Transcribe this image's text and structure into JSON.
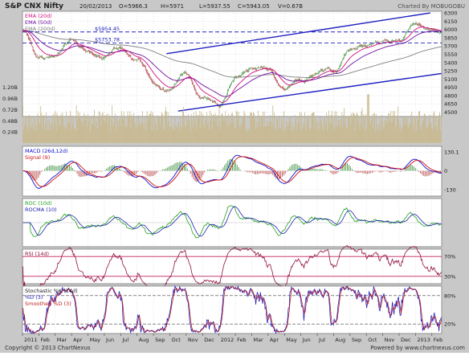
{
  "header": {
    "symbol": "S&P CNX Nifty",
    "date": "20/02/2013",
    "open": "O=5966.3",
    "high": "H=5971",
    "low": "L=5937.55",
    "close": "C=5943.05",
    "volume": "V=0.67B",
    "credit": "Charted By MOBUGOBU"
  },
  "footer": {
    "copyright": "Copyright © 2013 ChartNexus",
    "powered": "Powered by www.chartnexus.com"
  },
  "colors": {
    "background": "#c8c8c8",
    "panel": "#ffffff",
    "grid": "#c0c0c0",
    "ema20": "#d01080",
    "ema50": "#7010a0",
    "ema200": "#808080",
    "channel": "#2020c0",
    "level": "#2020c0",
    "candle_up": "#2a8a2a",
    "candle_down": "#a02020",
    "volume": "#c8b88a",
    "macd": "#1010d0",
    "signal": "#d01010",
    "hist_up": "#5aa05a",
    "hist_down": "#c06060",
    "roc": "#20a020",
    "rocma": "#2020b0",
    "rsi": "#901040",
    "rsi_band": "#c02060",
    "stoch_k": "#2020c0",
    "stoch_d": "#c02020"
  },
  "chart_data": [
    {
      "type": "candlestick",
      "panel": "price",
      "legend": [
        "EMA (20d)",
        "EMA (50d)",
        "EMA (200d)"
      ],
      "y_ticks": [
        4500,
        4650,
        4800,
        4950,
        5100,
        5250,
        5400,
        5550,
        5700,
        5850,
        6000,
        6150,
        6300
      ],
      "ylim": [
        4420,
        6330
      ],
      "level_lines": [
        {
          "label": "$5954.45",
          "value": 5954.45
        },
        {
          "label": "$5753.78",
          "value": 5753.78
        }
      ],
      "x_labels": [
        "2011",
        "Feb",
        "Mar",
        "Apr",
        "May",
        "Jun",
        "Jul",
        "Aug",
        "Sep",
        "Oct",
        "Nov",
        "Dec",
        "2012",
        "Feb",
        "Mar",
        "Apr",
        "May",
        "Jun",
        "Jul",
        "Aug",
        "Sep",
        "Oct",
        "Nov",
        "Dec",
        "2013",
        "Feb"
      ],
      "close_path_months": [
        0,
        1,
        2,
        3,
        4,
        5,
        6,
        7,
        8,
        9,
        10,
        11,
        12,
        13,
        14,
        15,
        16,
        17,
        18,
        19,
        20,
        21,
        22,
        23,
        24,
        25,
        25.6
      ],
      "close_path_values": [
        6000,
        5500,
        5550,
        5850,
        5550,
        5500,
        5650,
        5450,
        5000,
        4900,
        5200,
        4700,
        4650,
        5100,
        5300,
        5250,
        4900,
        5050,
        5200,
        5250,
        5600,
        5700,
        5750,
        5800,
        6050,
        6000,
        5943
      ]
    },
    {
      "type": "bar",
      "panel": "volume",
      "y_ticks": [
        "1.20B",
        "0.96B",
        "0.72B",
        "0.48B",
        "0.24B"
      ],
      "y_tick_values": [
        1.2,
        0.96,
        0.72,
        0.48,
        0.24
      ],
      "ylim": [
        0,
        1.35
      ],
      "note": "daily volume bars, typical 0.3B–0.8B with a spike near Oct 2012"
    },
    {
      "type": "line",
      "panel": "macd",
      "legend": [
        "MACD (26d,12d)",
        "Signal (9)"
      ],
      "y_ticks": [
        130.1,
        0,
        -130
      ],
      "ylim": [
        -175,
        170
      ]
    },
    {
      "type": "line",
      "panel": "roc",
      "legend": [
        "ROC (10d)",
        "ROCMA (10)"
      ],
      "y_ticks": [],
      "ylim": [
        -10,
        10
      ]
    },
    {
      "type": "line",
      "panel": "rsi",
      "legend": [
        "RSI (14d)"
      ],
      "y_ticks": [
        "70%",
        "30%"
      ],
      "y_tick_values": [
        70,
        30
      ],
      "ylim": [
        15,
        85
      ]
    },
    {
      "type": "line",
      "panel": "stochastic",
      "legend": [
        "Stochastic %K (14d)",
        "%D (3)",
        "Smoothed %D (3)"
      ],
      "y_ticks": [
        "80%",
        "20%"
      ],
      "y_tick_values": [
        80,
        20
      ],
      "ylim": [
        0,
        100
      ]
    }
  ]
}
